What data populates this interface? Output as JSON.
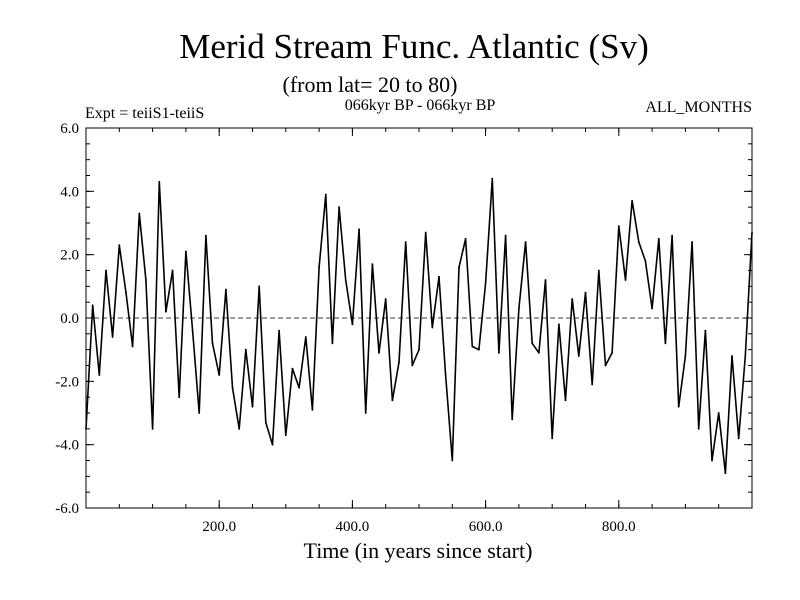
{
  "chart_data": {
    "type": "line",
    "title": "Merid Stream Func. Atlantic (Sv)",
    "subtitle": "(from lat= 20 to 80)",
    "left_label": "Expt = teiiS1-teiiS",
    "center_label": "066kyr BP - 066kyr BP",
    "right_label": "ALL_MONTHS",
    "xlabel": "Time (in years since start)",
    "ylabel": "",
    "xlim": [
      0,
      1000
    ],
    "ylim": [
      -6,
      6
    ],
    "x_ticks": [
      {
        "value": 200,
        "label": "200.0"
      },
      {
        "value": 400,
        "label": "400.0"
      },
      {
        "value": 600,
        "label": "600.0"
      },
      {
        "value": 800,
        "label": "800.0"
      }
    ],
    "y_ticks": [
      {
        "value": 6,
        "label": "6.0"
      },
      {
        "value": 4,
        "label": "4.0"
      },
      {
        "value": 2,
        "label": "2.0"
      },
      {
        "value": 0,
        "label": "0.0"
      },
      {
        "value": -2,
        "label": "-2.0"
      },
      {
        "value": -4,
        "label": "-4.0"
      },
      {
        "value": -6,
        "label": "-6.0"
      }
    ],
    "reference_line": 0,
    "series": [
      {
        "x": [
          0,
          10,
          20,
          30,
          40,
          50,
          60,
          70,
          80,
          90,
          100,
          110,
          120,
          130,
          140,
          150,
          160,
          170,
          180,
          190,
          200,
          210,
          220,
          230,
          240,
          250,
          260,
          270,
          280,
          290,
          300,
          310,
          320,
          330,
          340,
          350,
          360,
          370,
          380,
          390,
          400,
          410,
          420,
          430,
          440,
          450,
          460,
          470,
          480,
          490,
          500,
          510,
          520,
          530,
          540,
          550,
          560,
          570,
          580,
          590,
          600,
          610,
          620,
          630,
          640,
          650,
          660,
          670,
          680,
          690,
          700,
          710,
          720,
          730,
          740,
          750,
          760,
          770,
          780,
          790,
          800,
          810,
          820,
          830,
          840,
          850,
          860,
          870,
          880,
          890,
          900,
          910,
          920,
          930,
          940,
          950,
          960,
          970,
          980,
          990,
          1000
        ],
        "values": [
          -3.5,
          0.4,
          -1.8,
          1.5,
          -0.6,
          2.3,
          0.8,
          -0.9,
          3.3,
          1.2,
          -3.5,
          4.3,
          0.2,
          1.5,
          -2.5,
          2.1,
          -0.4,
          -3.0,
          2.6,
          -0.8,
          -1.8,
          0.9,
          -2.2,
          -3.5,
          -1.0,
          -2.8,
          1.0,
          -3.3,
          -4.0,
          -0.4,
          -3.7,
          -1.6,
          -2.2,
          -0.6,
          -2.9,
          1.6,
          3.9,
          -0.8,
          3.5,
          1.2,
          -0.2,
          2.8,
          -3.0,
          1.7,
          -1.1,
          0.6,
          -2.6,
          -1.4,
          2.4,
          -1.5,
          -1.0,
          2.7,
          -0.3,
          1.3,
          -1.8,
          -4.5,
          1.6,
          2.5,
          -0.9,
          -1.0,
          1.1,
          4.4,
          -1.1,
          2.6,
          -3.2,
          0.3,
          2.4,
          -0.8,
          -1.1,
          1.2,
          -3.8,
          -0.2,
          -2.6,
          0.6,
          -1.2,
          0.8,
          -2.1,
          1.5,
          -1.5,
          -1.1,
          2.9,
          1.2,
          3.7,
          2.4,
          1.8,
          0.3,
          2.5,
          -0.8,
          2.6,
          -2.8,
          -1.2,
          2.4,
          -3.5,
          -0.4,
          -4.5,
          -3.0,
          -4.9,
          -1.2,
          -3.8,
          -1.2,
          2.7
        ]
      }
    ],
    "grid": false,
    "colors": {
      "line": "#000000",
      "background": "#ffffff"
    }
  }
}
